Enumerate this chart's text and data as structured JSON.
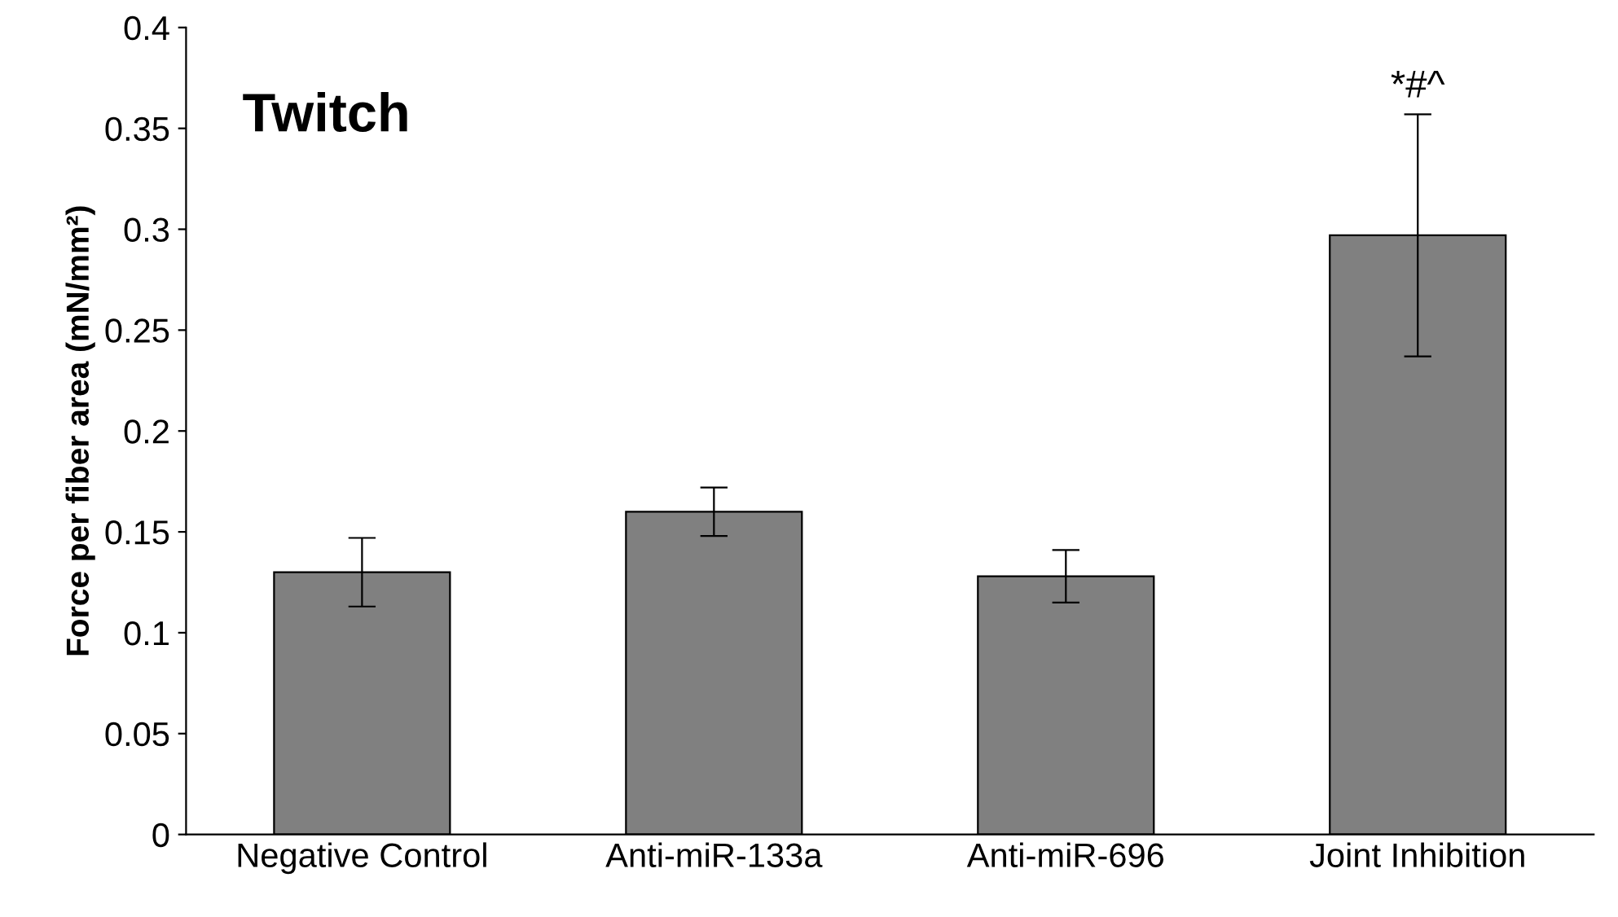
{
  "chart_data": {
    "type": "bar",
    "title": "Twitch",
    "ylabel": "Force per fiber area (mN/mm²)",
    "categories": [
      "Negative Control",
      "Anti-miR-133a",
      "Anti-miR-696",
      "Joint Inhibition"
    ],
    "values": [
      0.13,
      0.16,
      0.128,
      0.297
    ],
    "errors": [
      0.017,
      0.012,
      0.013,
      0.06
    ],
    "color": "#808080",
    "ylim": [
      0,
      0.4
    ],
    "yticks": [
      0,
      0.05,
      0.1,
      0.15,
      0.2,
      0.25,
      0.3,
      0.35,
      0.4
    ],
    "annotations": [
      {
        "text": "*#^",
        "x": "Joint Inhibition",
        "y": 0.357
      }
    ],
    "grid": false,
    "legend": false
  }
}
